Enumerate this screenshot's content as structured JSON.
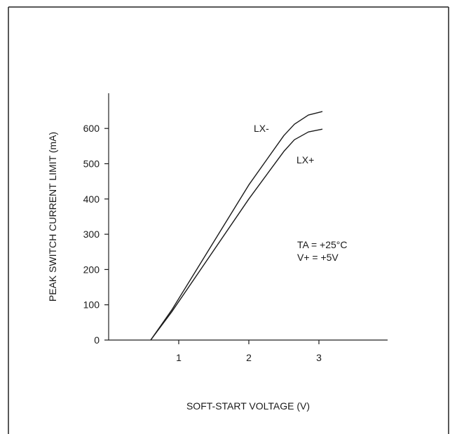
{
  "chart_data": {
    "type": "line",
    "title": "",
    "xlabel": "SOFT-START VOLTAGE (V)",
    "ylabel": "PEAK SWITCH CURRENT LIMIT (mA)",
    "xlim": [
      0,
      4
    ],
    "ylim": [
      0,
      700
    ],
    "x_ticks": [
      1,
      2,
      3
    ],
    "y_ticks": [
      0,
      100,
      200,
      300,
      400,
      500,
      600
    ],
    "grid": false,
    "series": [
      {
        "name": "LX-",
        "points": [
          [
            0.6,
            0
          ],
          [
            0.9,
            85
          ],
          [
            2.0,
            440
          ],
          [
            2.5,
            580
          ],
          [
            2.65,
            612
          ],
          [
            2.85,
            638
          ],
          [
            3.05,
            648
          ]
        ]
      },
      {
        "name": "LX+",
        "points": [
          [
            0.6,
            0
          ],
          [
            0.9,
            80
          ],
          [
            2.0,
            400
          ],
          [
            2.5,
            535
          ],
          [
            2.65,
            568
          ],
          [
            2.85,
            590
          ],
          [
            3.05,
            598
          ]
        ]
      }
    ],
    "annotations": [
      {
        "id": "ta",
        "text": "TA = +25°C"
      },
      {
        "id": "vplus",
        "text": "V+ = +5V"
      }
    ]
  },
  "colors": {
    "line": "#1a1a1a",
    "frame": "#222222",
    "background": "#ffffff"
  }
}
